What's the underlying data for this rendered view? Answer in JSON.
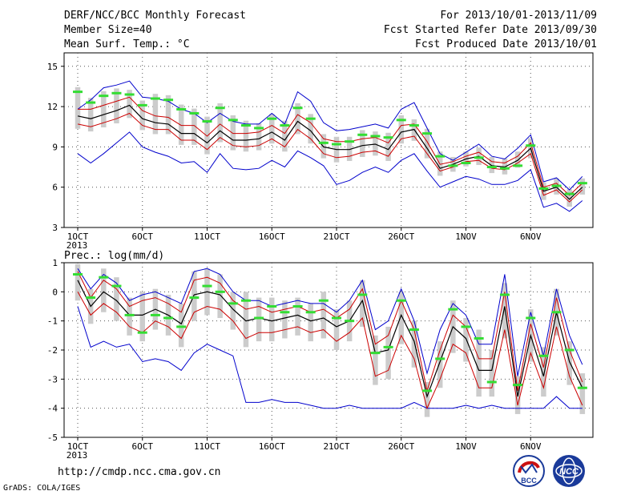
{
  "header": {
    "model": "DERF/NCC/BCC Monthly Forecast",
    "member_size": "Member Size=40",
    "variable": "Mean Surf. Temp.: °C",
    "period": "For 2013/10/01-2013/11/09",
    "fcst_started": "Fcst Started Refer Date 2013/09/30",
    "fcst_produced": "Fcst Produced Date 2013/10/01"
  },
  "footer": {
    "url": "http://cmdp.ncc.cma.gov.cn",
    "grads": "GrADS: COLA/IGES",
    "logo_bcc": "BCC",
    "logo_ncc": "NCC"
  },
  "colors": {
    "envelope": "#0000cc",
    "inner_band": "#cc0000",
    "mean": "#000000",
    "box": "#cccccc",
    "median": "#33dd33",
    "grid": "#555555"
  },
  "chart_data": [
    {
      "type": "line",
      "title": "Mean Surf. Temp.: °C",
      "x": [
        "2013-10-01",
        "2013-10-02",
        "2013-10-03",
        "2013-10-04",
        "2013-10-05",
        "2013-10-06",
        "2013-10-07",
        "2013-10-08",
        "2013-10-09",
        "2013-10-10",
        "2013-10-11",
        "2013-10-12",
        "2013-10-13",
        "2013-10-14",
        "2013-10-15",
        "2013-10-16",
        "2013-10-17",
        "2013-10-18",
        "2013-10-19",
        "2013-10-20",
        "2013-10-21",
        "2013-10-22",
        "2013-10-23",
        "2013-10-24",
        "2013-10-25",
        "2013-10-26",
        "2013-10-27",
        "2013-10-28",
        "2013-10-29",
        "2013-10-30",
        "2013-10-31",
        "2013-11-01",
        "2013-11-02",
        "2013-11-03",
        "2013-11-04",
        "2013-11-05",
        "2013-11-06",
        "2013-11-07",
        "2013-11-08",
        "2013-11-09"
      ],
      "xtick_labels": [
        "1OCT\n2013",
        "6OCT",
        "11OCT",
        "16OCT",
        "21OCT",
        "26OCT",
        "1NOV",
        "6NOV"
      ],
      "ylim": [
        3,
        16
      ],
      "yticks": [
        3,
        6,
        9,
        12,
        15
      ],
      "grid": true,
      "series": [
        {
          "values": [
            11.8,
            12.5,
            13.4,
            13.6,
            13.9,
            12.7,
            12.6,
            12.4,
            11.8,
            11.5,
            10.8,
            11.5,
            10.9,
            10.7,
            10.7,
            11.5,
            10.7,
            13.1,
            12.4,
            10.8,
            10.2,
            10.3,
            10.5,
            10.7,
            10.4,
            11.8,
            12.3,
            10.4,
            8.5,
            8.0,
            8.6,
            9.2,
            8.3,
            8.1,
            8.9,
            9.9,
            6.4,
            6.7,
            5.8,
            6.8
          ]
        },
        {
          "values": [
            8.5,
            7.8,
            8.5,
            9.3,
            10.1,
            9.0,
            8.6,
            8.3,
            7.8,
            7.9,
            7.1,
            8.5,
            7.4,
            7.3,
            7.4,
            8.0,
            7.5,
            8.7,
            8.2,
            7.6,
            6.2,
            6.5,
            7.1,
            7.5,
            7.1,
            8.0,
            8.5,
            7.2,
            6.0,
            6.4,
            6.8,
            6.6,
            6.2,
            6.2,
            6.5,
            7.3,
            4.5,
            4.8,
            4.2,
            5.0
          ]
        },
        {
          "values": [
            11.8,
            11.8,
            12.1,
            12.4,
            12.7,
            11.7,
            11.3,
            11.2,
            10.6,
            10.6,
            9.8,
            10.7,
            10.0,
            10.0,
            10.1,
            10.6,
            10.0,
            11.4,
            10.8,
            9.6,
            9.4,
            9.4,
            9.6,
            9.7,
            9.3,
            10.6,
            10.7,
            9.4,
            7.7,
            7.9,
            8.3,
            8.6,
            7.9,
            7.8,
            8.3,
            9.3,
            6.0,
            6.3,
            5.4,
            6.3
          ]
        },
        {
          "values": [
            10.7,
            10.5,
            10.8,
            11.1,
            11.5,
            10.6,
            10.3,
            10.3,
            9.5,
            9.5,
            8.8,
            9.7,
            9.1,
            9.0,
            9.1,
            9.6,
            9.0,
            10.3,
            9.6,
            8.5,
            8.2,
            8.3,
            8.6,
            8.7,
            8.3,
            9.6,
            9.8,
            8.5,
            7.2,
            7.5,
            7.9,
            8.0,
            7.4,
            7.3,
            7.8,
            8.5,
            5.4,
            5.8,
            4.9,
            5.8
          ]
        },
        {
          "values": [
            11.3,
            11.1,
            11.4,
            11.7,
            12.1,
            11.1,
            10.8,
            10.7,
            10.0,
            10.0,
            9.3,
            10.2,
            9.5,
            9.5,
            9.6,
            10.1,
            9.5,
            10.9,
            10.2,
            9.0,
            8.8,
            8.8,
            9.1,
            9.2,
            8.8,
            10.1,
            10.3,
            8.9,
            7.4,
            7.7,
            8.1,
            8.3,
            7.6,
            7.5,
            8.0,
            8.9,
            5.7,
            6.0,
            5.1,
            6.0
          ]
        },
        {
          "values": [
            13.1,
            12.3,
            12.8,
            13.0,
            12.9,
            12.1,
            12.6,
            12.5,
            11.8,
            11.5,
            10.9,
            11.9,
            11.0,
            10.6,
            10.4,
            11.1,
            10.6,
            11.9,
            11.1,
            9.3,
            9.2,
            9.4,
            9.9,
            9.8,
            9.7,
            11.0,
            10.6,
            10.0,
            8.3,
            7.6,
            7.8,
            8.2,
            7.5,
            7.4,
            7.6,
            9.1,
            5.9,
            6.1,
            5.5,
            6.3
          ]
        }
      ]
    },
    {
      "type": "line",
      "title": "Prec.: log(mm/d)",
      "x": [
        "2013-10-01",
        "2013-10-02",
        "2013-10-03",
        "2013-10-04",
        "2013-10-05",
        "2013-10-06",
        "2013-10-07",
        "2013-10-08",
        "2013-10-09",
        "2013-10-10",
        "2013-10-11",
        "2013-10-12",
        "2013-10-13",
        "2013-10-14",
        "2013-10-15",
        "2013-10-16",
        "2013-10-17",
        "2013-10-18",
        "2013-10-19",
        "2013-10-20",
        "2013-10-21",
        "2013-10-22",
        "2013-10-23",
        "2013-10-24",
        "2013-10-25",
        "2013-10-26",
        "2013-10-27",
        "2013-10-28",
        "2013-10-29",
        "2013-10-30",
        "2013-10-31",
        "2013-11-01",
        "2013-11-02",
        "2013-11-03",
        "2013-11-04",
        "2013-11-05",
        "2013-11-06",
        "2013-11-07",
        "2013-11-08",
        "2013-11-09"
      ],
      "xtick_labels": [
        "1OCT\n2013",
        "6OCT",
        "11OCT",
        "16OCT",
        "21OCT",
        "26OCT",
        "1NOV",
        "6NOV"
      ],
      "ylim": [
        -5,
        1
      ],
      "yticks": [
        -5,
        -4,
        -3,
        -2,
        -1,
        0,
        1
      ],
      "grid": true,
      "series": [
        {
          "values": [
            0.8,
            0.1,
            0.6,
            0.3,
            -0.3,
            -0.1,
            0.0,
            -0.2,
            -0.4,
            0.7,
            0.8,
            0.6,
            0.0,
            -0.3,
            -0.3,
            -0.5,
            -0.4,
            -0.3,
            -0.4,
            -0.4,
            -0.7,
            -0.3,
            0.4,
            -1.3,
            -1.0,
            0.1,
            -1.0,
            -2.8,
            -1.3,
            -0.4,
            -0.8,
            -1.8,
            -1.8,
            0.6,
            -2.9,
            -0.7,
            -2.2,
            0.1,
            -1.5,
            -2.5
          ]
        },
        {
          "values": [
            -0.5,
            -1.9,
            -1.7,
            -1.9,
            -1.8,
            -2.4,
            -2.3,
            -2.4,
            -2.7,
            -2.1,
            -1.8,
            -2.0,
            -2.2,
            -3.8,
            -3.8,
            -3.7,
            -3.8,
            -3.8,
            -3.9,
            -4.0,
            -4.0,
            -3.9,
            -4.0,
            -4.0,
            -4.0,
            -4.0,
            -3.8,
            -4.0,
            -4.0,
            -4.0,
            -3.9,
            -4.0,
            -3.9,
            -4.0,
            -4.0,
            -4.0,
            -4.0,
            -3.6,
            -4.0,
            -4.0
          ]
        },
        {
          "values": [
            0.7,
            -0.2,
            0.4,
            0.1,
            -0.5,
            -0.3,
            -0.2,
            -0.4,
            -0.7,
            0.4,
            0.5,
            0.3,
            -0.3,
            -0.6,
            -0.5,
            -0.7,
            -0.6,
            -0.5,
            -0.7,
            -0.6,
            -0.9,
            -0.6,
            0.1,
            -1.8,
            -1.5,
            -0.3,
            -1.3,
            -3.4,
            -2.0,
            -0.8,
            -1.2,
            -2.3,
            -2.3,
            0.0,
            -3.4,
            -1.1,
            -2.6,
            -0.2,
            -2.0,
            -3.1
          ]
        },
        {
          "values": [
            0.0,
            -0.8,
            -0.4,
            -0.7,
            -1.2,
            -1.4,
            -1.0,
            -1.2,
            -1.6,
            -0.7,
            -0.5,
            -0.6,
            -1.0,
            -1.6,
            -1.4,
            -1.4,
            -1.3,
            -1.2,
            -1.4,
            -1.3,
            -1.7,
            -1.4,
            -0.9,
            -2.9,
            -2.7,
            -1.5,
            -2.3,
            -4.0,
            -3.0,
            -1.8,
            -2.1,
            -3.3,
            -3.3,
            -1.3,
            -3.9,
            -2.1,
            -3.3,
            -1.2,
            -2.9,
            -3.9
          ]
        },
        {
          "values": [
            0.4,
            -0.5,
            0.0,
            -0.3,
            -0.8,
            -0.8,
            -0.6,
            -0.8,
            -1.1,
            -0.1,
            0.0,
            -0.1,
            -0.6,
            -1.0,
            -0.9,
            -1.0,
            -0.9,
            -0.8,
            -1.0,
            -0.9,
            -1.2,
            -1.0,
            -0.3,
            -2.1,
            -2.0,
            -0.8,
            -1.7,
            -3.6,
            -2.4,
            -1.2,
            -1.6,
            -2.7,
            -2.7,
            -0.5,
            -3.6,
            -1.5,
            -2.9,
            -0.7,
            -2.4,
            -3.3
          ]
        },
        {
          "values": [
            0.6,
            -0.2,
            0.5,
            0.2,
            -0.8,
            -1.4,
            -0.8,
            -0.9,
            -1.2,
            -0.2,
            0.2,
            0.0,
            -0.4,
            -0.3,
            -0.9,
            -0.5,
            -0.7,
            -0.5,
            -0.7,
            -0.3,
            -0.9,
            -1.0,
            -0.1,
            -2.1,
            -1.9,
            -0.3,
            -1.3,
            -3.4,
            -2.3,
            -0.6,
            -1.2,
            -1.6,
            -3.1,
            -0.1,
            -3.2,
            -0.9,
            -2.2,
            -0.7,
            -2.0,
            -3.3
          ]
        }
      ]
    }
  ]
}
